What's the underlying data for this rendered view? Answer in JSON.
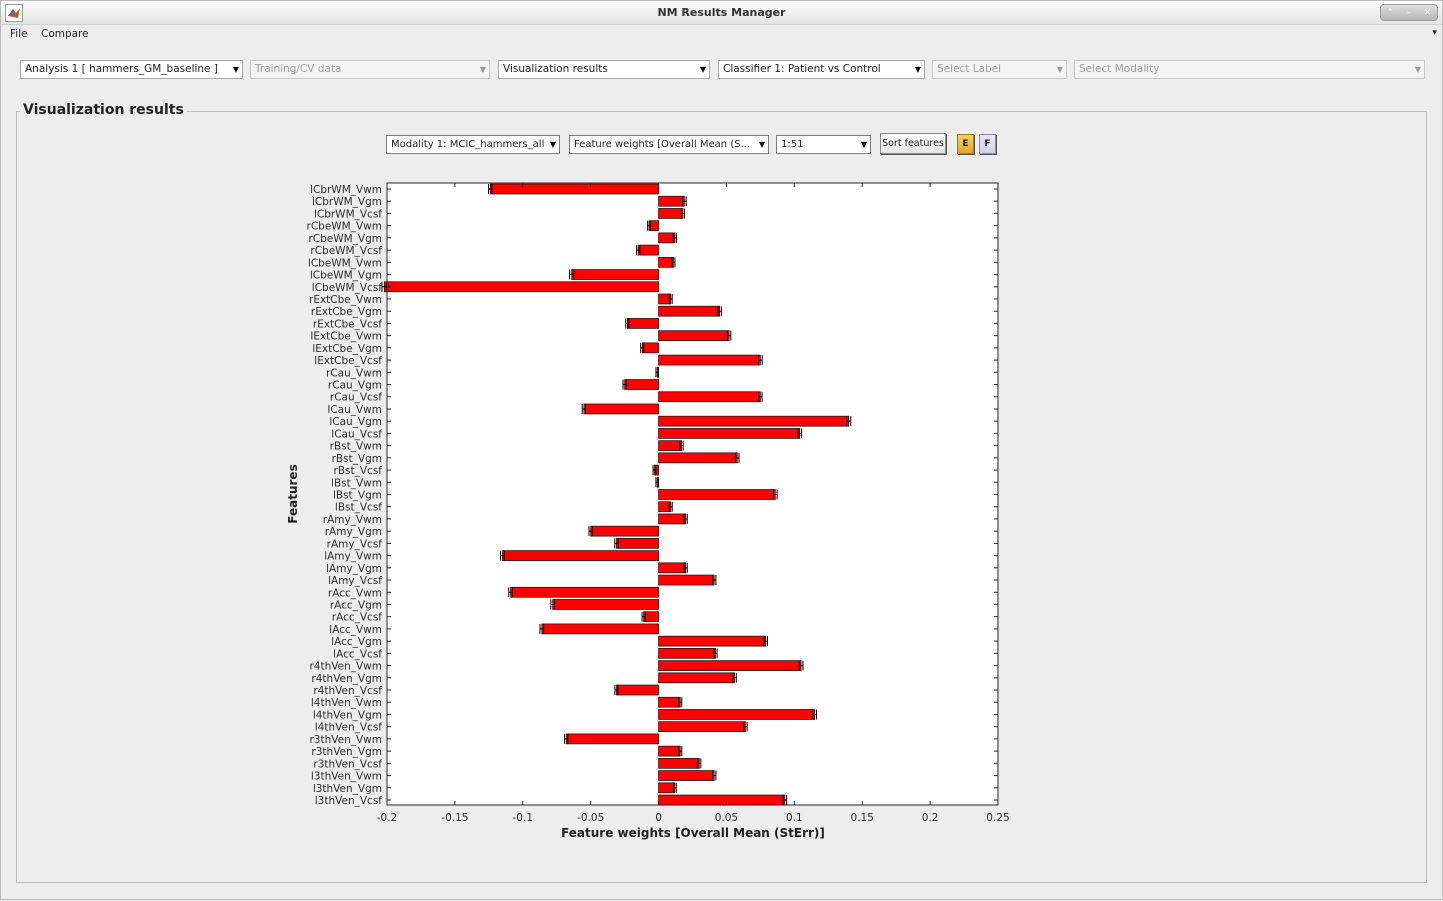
{
  "window": {
    "title": "NM Results Manager"
  },
  "menu": {
    "file": "File",
    "compare": "Compare"
  },
  "toolbar": {
    "analysis": "Analysis 1 [ hammers_GM_baseline ]",
    "training": "Training/CV data",
    "visualization": "Visualization results",
    "classifier": "Classifier 1: Patient vs Control",
    "label": "Select Label",
    "modality": "Select Modality"
  },
  "panel": {
    "title": "Visualization results",
    "modality_select": "Modality 1: MCIC_hammers_all",
    "measure_select": "Feature weights [Overall Mean (S...",
    "range_select": "1:51",
    "sort_button": "Sort features",
    "e_button": "E",
    "f_button": "F"
  },
  "colors": {
    "bar": "#ff0000",
    "error": "#000000"
  },
  "chart_data": {
    "type": "bar",
    "orientation": "horizontal",
    "xlabel": "Feature weights [Overall Mean (StErr)]",
    "ylabel": "Features",
    "xlim": [
      -0.2,
      0.25
    ],
    "xticks": [
      "-0.2",
      "-0.15",
      "-0.1",
      "-0.05",
      "0",
      "0.05",
      "0.1",
      "0.15",
      "0.2",
      "0.25"
    ],
    "grid": false,
    "categories": [
      "lCbrWM_Vwm",
      "lCbrWM_Vgm",
      "lCbrWM_Vcsf",
      "rCbeWM_Vwm",
      "rCbeWM_Vgm",
      "rCbeWM_Vcsf",
      "lCbeWM_Vwm",
      "lCbeWM_Vgm",
      "lCbeWM_Vcsf",
      "rExtCbe_Vwm",
      "rExtCbe_Vgm",
      "rExtCbe_Vcsf",
      "lExtCbe_Vwm",
      "lExtCbe_Vgm",
      "lExtCbe_Vcsf",
      "rCau_Vwm",
      "rCau_Vgm",
      "rCau_Vcsf",
      "lCau_Vwm",
      "lCau_Vgm",
      "lCau_Vcsf",
      "rBst_Vwm",
      "rBst_Vgm",
      "rBst_Vcsf",
      "lBst_Vwm",
      "lBst_Vgm",
      "lBst_Vcsf",
      "rAmy_Vwm",
      "rAmy_Vgm",
      "rAmy_Vcsf",
      "lAmy_Vwm",
      "lAmy_Vgm",
      "lAmy_Vcsf",
      "rAcc_Vwm",
      "rAcc_Vgm",
      "rAcc_Vcsf",
      "lAcc_Vwm",
      "lAcc_Vgm",
      "lAcc_Vcsf",
      "r4thVen_Vwm",
      "r4thVen_Vgm",
      "r4thVen_Vcsf",
      "l4thVen_Vwm",
      "l4thVen_Vgm",
      "l4thVen_Vcsf",
      "r3thVen_Vwm",
      "r3thVen_Vgm",
      "r3thVen_Vcsf",
      "l3thVen_Vwm",
      "l3thVen_Vgm",
      "l3thVen_Vcsf"
    ],
    "values": [
      -0.124,
      0.019,
      0.018,
      -0.007,
      0.012,
      -0.015,
      0.011,
      -0.064,
      -0.202,
      0.009,
      0.045,
      -0.023,
      0.052,
      -0.012,
      0.075,
      -0.001,
      -0.025,
      0.075,
      -0.055,
      0.14,
      0.104,
      0.017,
      0.058,
      -0.003,
      -0.001,
      0.086,
      0.009,
      0.02,
      -0.05,
      -0.031,
      -0.115,
      0.02,
      0.041,
      -0.109,
      -0.078,
      -0.011,
      -0.086,
      0.079,
      0.042,
      0.105,
      0.056,
      -0.031,
      0.016,
      0.115,
      0.064,
      -0.068,
      0.016,
      0.03,
      0.041,
      0.012,
      0.093
    ],
    "errors": [
      0.0005,
      0.0006,
      0.0004,
      0.0003,
      0.0004,
      0.0004,
      0.0003,
      0.0008,
      0.001,
      0.0003,
      0.0005,
      0.0004,
      0.0005,
      0.0004,
      0.0006,
      0.0002,
      0.0004,
      0.0005,
      0.0005,
      0.0008,
      0.0006,
      0.0004,
      0.0005,
      0.0003,
      0.0002,
      0.0006,
      0.0003,
      0.0004,
      0.0005,
      0.0005,
      0.0007,
      0.0004,
      0.0005,
      0.0006,
      0.0006,
      0.0004,
      0.0006,
      0.0005,
      0.0004,
      0.0006,
      0.0005,
      0.0004,
      0.0004,
      0.0006,
      0.0005,
      0.0005,
      0.0004,
      0.0004,
      0.0005,
      0.0003,
      0.0006
    ]
  }
}
